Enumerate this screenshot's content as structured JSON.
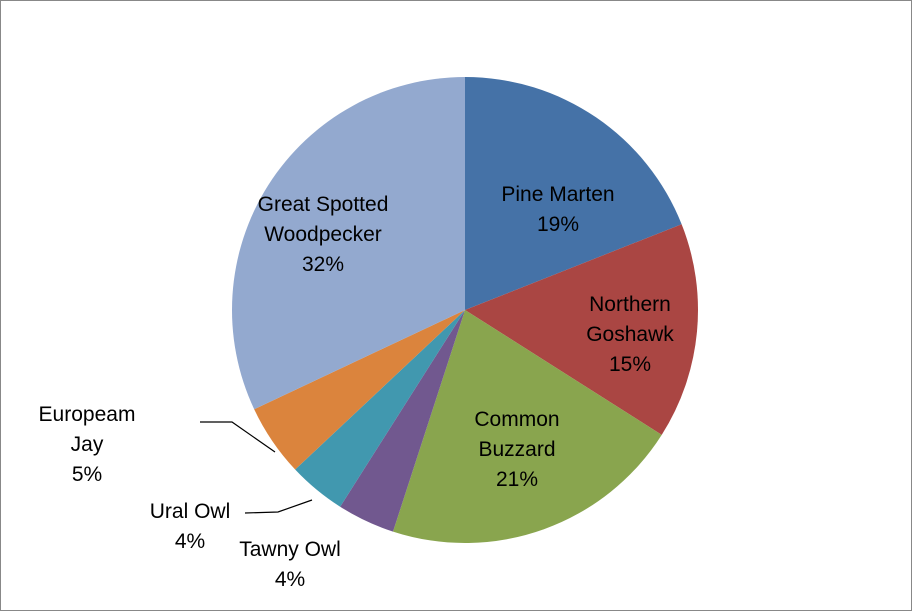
{
  "chart_data": {
    "type": "pie",
    "categories": [
      "Pine Marten",
      "Northern Goshawk",
      "Common Buzzard",
      "Tawny Owl",
      "Ural Owl",
      "Europeam Jay",
      "Great Spotted Woodpecker"
    ],
    "values": [
      19,
      15,
      21,
      4,
      4,
      5,
      32
    ],
    "value_labels": [
      "19%",
      "15%",
      "21%",
      "4%",
      "4%",
      "5%",
      "32%"
    ],
    "colors": [
      "#4572a7",
      "#aa4643",
      "#89a54e",
      "#71588f",
      "#4198af",
      "#db843d",
      "#93a9cf"
    ]
  }
}
